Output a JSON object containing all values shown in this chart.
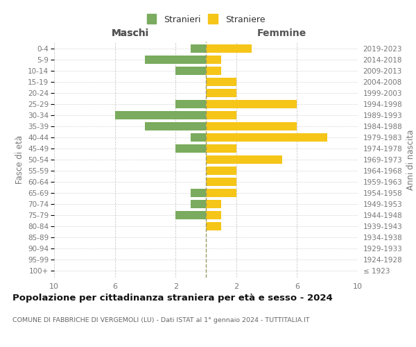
{
  "age_groups": [
    "100+",
    "95-99",
    "90-94",
    "85-89",
    "80-84",
    "75-79",
    "70-74",
    "65-69",
    "60-64",
    "55-59",
    "50-54",
    "45-49",
    "40-44",
    "35-39",
    "30-34",
    "25-29",
    "20-24",
    "15-19",
    "10-14",
    "5-9",
    "0-4"
  ],
  "birth_years": [
    "≤ 1923",
    "1924-1928",
    "1929-1933",
    "1934-1938",
    "1939-1943",
    "1944-1948",
    "1949-1953",
    "1954-1958",
    "1959-1963",
    "1964-1968",
    "1969-1973",
    "1974-1978",
    "1979-1983",
    "1984-1988",
    "1989-1993",
    "1994-1998",
    "1999-2003",
    "2004-2008",
    "2009-2013",
    "2014-2018",
    "2019-2023"
  ],
  "stranieri": [
    0,
    0,
    0,
    0,
    0,
    2,
    1,
    1,
    0,
    0,
    0,
    2,
    1,
    4,
    6,
    2,
    0,
    0,
    2,
    4,
    1
  ],
  "straniere": [
    0,
    0,
    0,
    0,
    1,
    1,
    1,
    2,
    2,
    2,
    5,
    2,
    8,
    6,
    2,
    6,
    2,
    2,
    1,
    1,
    3
  ],
  "color_stranieri": "#7aab5e",
  "color_straniere": "#f5c518",
  "title": "Popolazione per cittadinanza straniera per età e sesso - 2024",
  "subtitle": "COMUNE DI FABBRICHE DI VERGEMOLI (LU) - Dati ISTAT al 1° gennaio 2024 - TUTTITALIA.IT",
  "ylabel_left": "Fasce di età",
  "ylabel_right": "Anni di nascita",
  "header_left": "Maschi",
  "header_right": "Femmine",
  "legend_stranieri": "Stranieri",
  "legend_straniere": "Straniere",
  "xlim": 10,
  "bg_color": "#ffffff",
  "grid_color": "#cccccc",
  "bar_height": 0.75,
  "text_color": "#777777",
  "header_color": "#555555",
  "title_color": "#111111",
  "subtitle_color": "#666666",
  "center_line_color": "#999966",
  "legend_marker_color_stranieri": "#7aab5e",
  "legend_marker_color_straniere": "#f5c518"
}
